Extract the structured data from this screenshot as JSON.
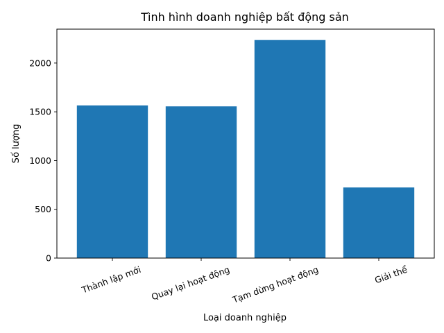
{
  "chart_data": {
    "type": "bar",
    "title": "Tình hình doanh nghiệp bất động sản",
    "xlabel": "Loại doanh nghiệp",
    "ylabel": "Số lượng",
    "categories": [
      "Thành lập mới",
      "Quay lại hoạt động",
      "Tạm dừng hoạt động",
      "Giải thể"
    ],
    "values": [
      1565,
      1556,
      2236,
      724
    ],
    "ylim": [
      0,
      2347.8
    ],
    "yticks": [
      0,
      500,
      1000,
      1500,
      2000
    ],
    "xtick_rotation": 20,
    "bar_color": "#1f77b4",
    "grid": false,
    "legend": false
  }
}
